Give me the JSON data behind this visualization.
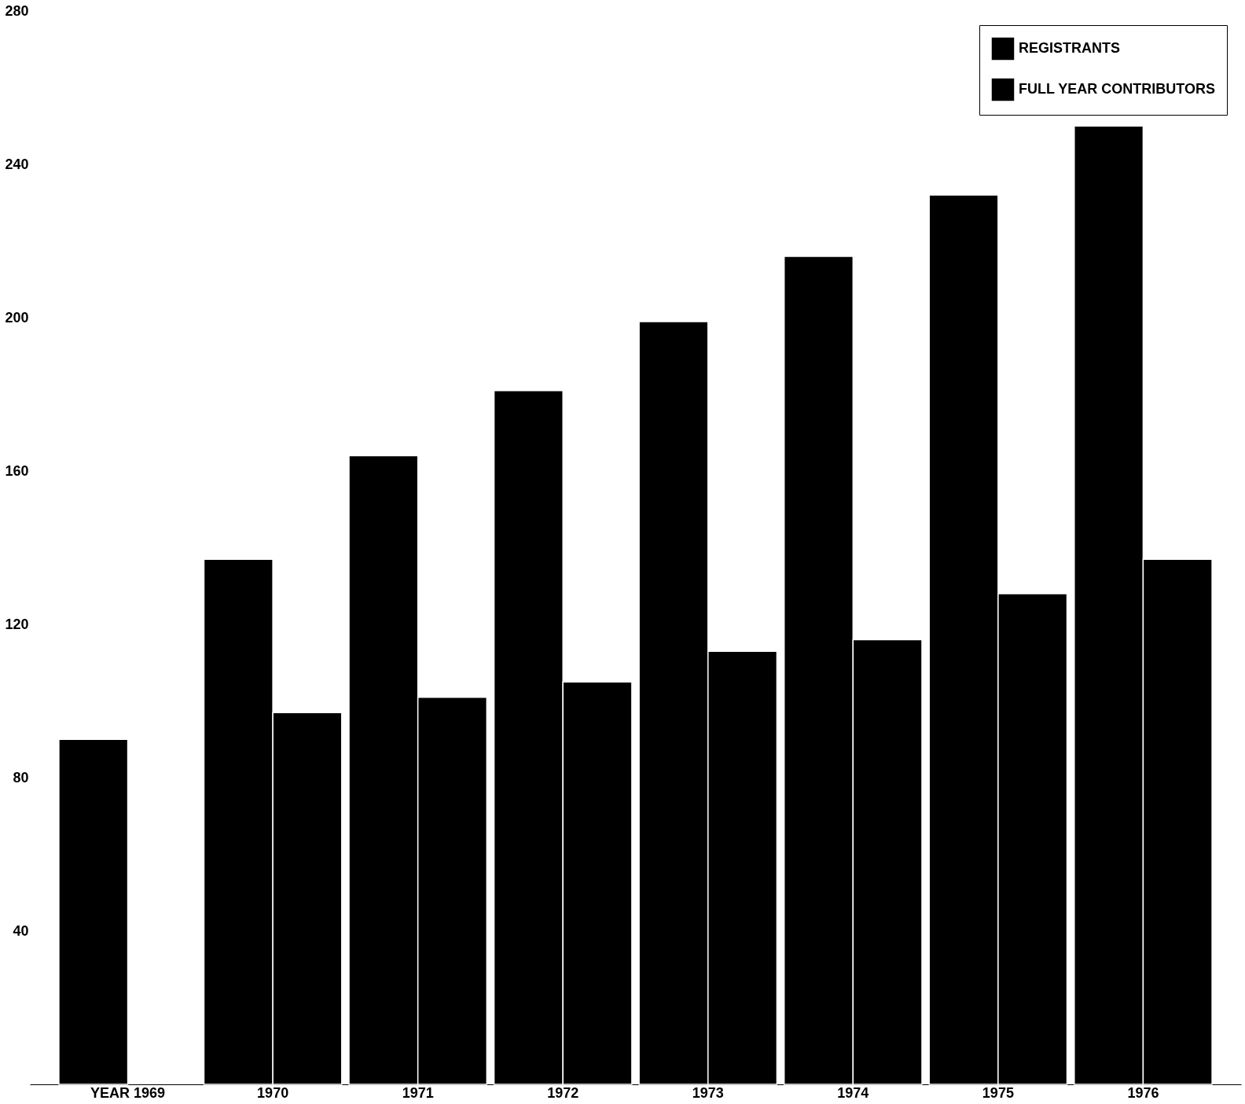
{
  "chart_data": {
    "type": "bar",
    "categories": [
      "YEAR 1969",
      "1970",
      "1971",
      "1972",
      "1973",
      "1974",
      "1975",
      "1976"
    ],
    "series": [
      {
        "name": "REGISTRANTS",
        "color": "#000000",
        "values": [
          90,
          137,
          164,
          181,
          199,
          216,
          232,
          250
        ]
      },
      {
        "name": "FULL YEAR CONTRIBUTORS",
        "color": "#000000",
        "values": [
          null,
          97,
          101,
          105,
          113,
          116,
          128,
          137
        ]
      }
    ],
    "ylim": [
      0,
      280
    ],
    "yticks": [
      40,
      80,
      120,
      160,
      200,
      240,
      280
    ],
    "grid": false,
    "legend": "top right"
  }
}
